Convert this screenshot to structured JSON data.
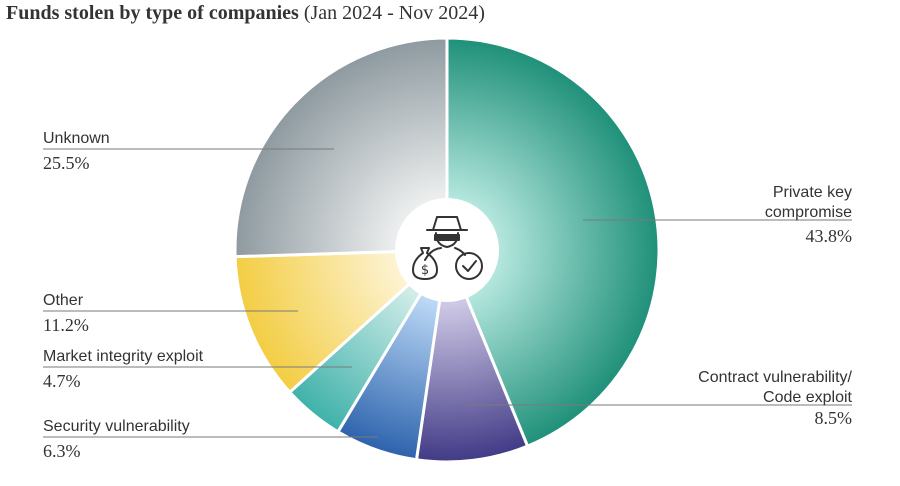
{
  "title": {
    "bold": "Funds stolen by type of companies",
    "rest": " (Jan 2024 - Nov 2024)"
  },
  "center_icon": "thief-money-bag-clock-icon",
  "chart_data": {
    "type": "pie",
    "title": "Funds stolen by type of companies (Jan 2024 - Nov 2024)",
    "unit": "%",
    "slices": [
      {
        "name": "Private key compromise",
        "label_lines": [
          "Private key",
          "compromise"
        ],
        "value": 43.8,
        "display": "43.8%",
        "color_light": "#b3e6dd",
        "color_dark": "#1f9079"
      },
      {
        "name": "Contract vulnerability/ Code exploit",
        "label_lines": [
          "Contract vulnerability/",
          "Code exploit"
        ],
        "value": 8.5,
        "display": "8.5%",
        "color_light": "#cfc9e6",
        "color_dark": "#413a86"
      },
      {
        "name": "Security vulnerability",
        "label_lines": [
          "Security vulnerability"
        ],
        "value": 6.3,
        "display": "6.3%",
        "color_light": "#bcd9f6",
        "color_dark": "#2d63ad"
      },
      {
        "name": "Market integrity exploit",
        "label_lines": [
          "Market integrity exploit"
        ],
        "value": 4.7,
        "display": "4.7%",
        "color_light": "#d2ede9",
        "color_dark": "#3fb2aa"
      },
      {
        "name": "Other",
        "label_lines": [
          "Other"
        ],
        "value": 11.2,
        "display": "11.2%",
        "color_light": "#fdf3d2",
        "color_dark": "#f3cd43"
      },
      {
        "name": "Unknown",
        "label_lines": [
          "Unknown"
        ],
        "value": 25.5,
        "display": "25.5%",
        "color_light": "#eceeee",
        "color_dark": "#8e9aa0"
      }
    ]
  }
}
